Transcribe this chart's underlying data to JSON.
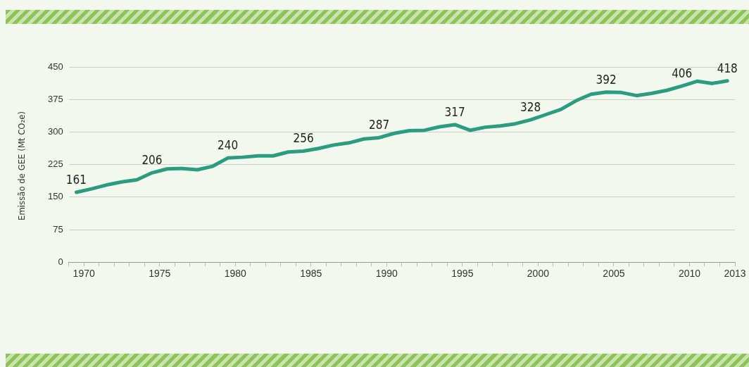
{
  "chart_data": {
    "type": "line",
    "ylabel": "Emissão de GEE (Mt CO₂e)",
    "x": [
      1969.5,
      1970.5,
      1971.5,
      1972.5,
      1973.5,
      1974.5,
      1975.5,
      1976.5,
      1977.5,
      1978.5,
      1979.5,
      1980.5,
      1981.5,
      1982.5,
      1983.5,
      1984.5,
      1985.5,
      1986.5,
      1987.5,
      1988.5,
      1989.5,
      1990.5,
      1991.5,
      1992.5,
      1993.5,
      1994.5,
      1995.5,
      1996.5,
      1997.5,
      1998.5,
      1999.5,
      2000.5,
      2001.5,
      2002.5,
      2003.5,
      2004.5,
      2005.5,
      2006.5,
      2007.5,
      2008.5,
      2009.5,
      2010.5,
      2011.5,
      2012.5
    ],
    "series": [
      {
        "color": "#2a9d80",
        "values": [
          161,
          169,
          178,
          185,
          190,
          206,
          215,
          216,
          213,
          221,
          240,
          242,
          245,
          245,
          254,
          256,
          262,
          270,
          275,
          284,
          287,
          297,
          303,
          304,
          312,
          317,
          304,
          311,
          314,
          319,
          328,
          340,
          352,
          372,
          387,
          392,
          391,
          384,
          389,
          396,
          406,
          417,
          412,
          418
        ],
        "value_labels": [
          "161",
          null,
          null,
          null,
          null,
          "206",
          null,
          null,
          null,
          null,
          "240",
          null,
          null,
          null,
          null,
          "256",
          null,
          null,
          null,
          null,
          "287",
          null,
          null,
          null,
          null,
          "317",
          null,
          null,
          null,
          null,
          "328",
          null,
          null,
          null,
          null,
          "392",
          null,
          null,
          null,
          null,
          "406",
          null,
          null,
          "418"
        ]
      }
    ],
    "xlim": [
      1969,
      2013
    ],
    "xticks": [
      {
        "value": 1969,
        "label": null
      },
      1970,
      {
        "value": 1971,
        "label": null
      },
      {
        "value": 1972,
        "label": null
      },
      {
        "value": 1973,
        "label": null
      },
      {
        "value": 1974,
        "label": null
      },
      1975,
      {
        "value": 1976,
        "label": null
      },
      {
        "value": 1977,
        "label": null
      },
      {
        "value": 1978,
        "label": null
      },
      {
        "value": 1979,
        "label": null
      },
      1980,
      {
        "value": 1981,
        "label": null
      },
      {
        "value": 1982,
        "label": null
      },
      {
        "value": 1983,
        "label": null
      },
      {
        "value": 1984,
        "label": null
      },
      1985,
      {
        "value": 1986,
        "label": null
      },
      {
        "value": 1987,
        "label": null
      },
      {
        "value": 1988,
        "label": null
      },
      {
        "value": 1989,
        "label": null
      },
      1990,
      {
        "value": 1991,
        "label": null
      },
      {
        "value": 1992,
        "label": null
      },
      {
        "value": 1993,
        "label": null
      },
      {
        "value": 1994,
        "label": null
      },
      1995,
      {
        "value": 1996,
        "label": null
      },
      {
        "value": 1997,
        "label": null
      },
      {
        "value": 1998,
        "label": null
      },
      {
        "value": 1999,
        "label": null
      },
      2000,
      {
        "value": 2001,
        "label": null
      },
      {
        "value": 2002,
        "label": null
      },
      {
        "value": 2003,
        "label": null
      },
      {
        "value": 2004,
        "label": null
      },
      2005,
      {
        "value": 2006,
        "label": null
      },
      {
        "value": 2007,
        "label": null
      },
      {
        "value": 2008,
        "label": null
      },
      {
        "value": 2009,
        "label": null
      },
      2010,
      {
        "value": 2011,
        "label": null
      },
      {
        "value": 2012,
        "label": null
      },
      2013
    ],
    "ylim": [
      0,
      450
    ],
    "yticks": [
      0,
      75,
      150,
      225,
      300,
      375,
      450
    ],
    "grid": "y",
    "legend": false,
    "marker": "none",
    "line_style": "solid"
  }
}
